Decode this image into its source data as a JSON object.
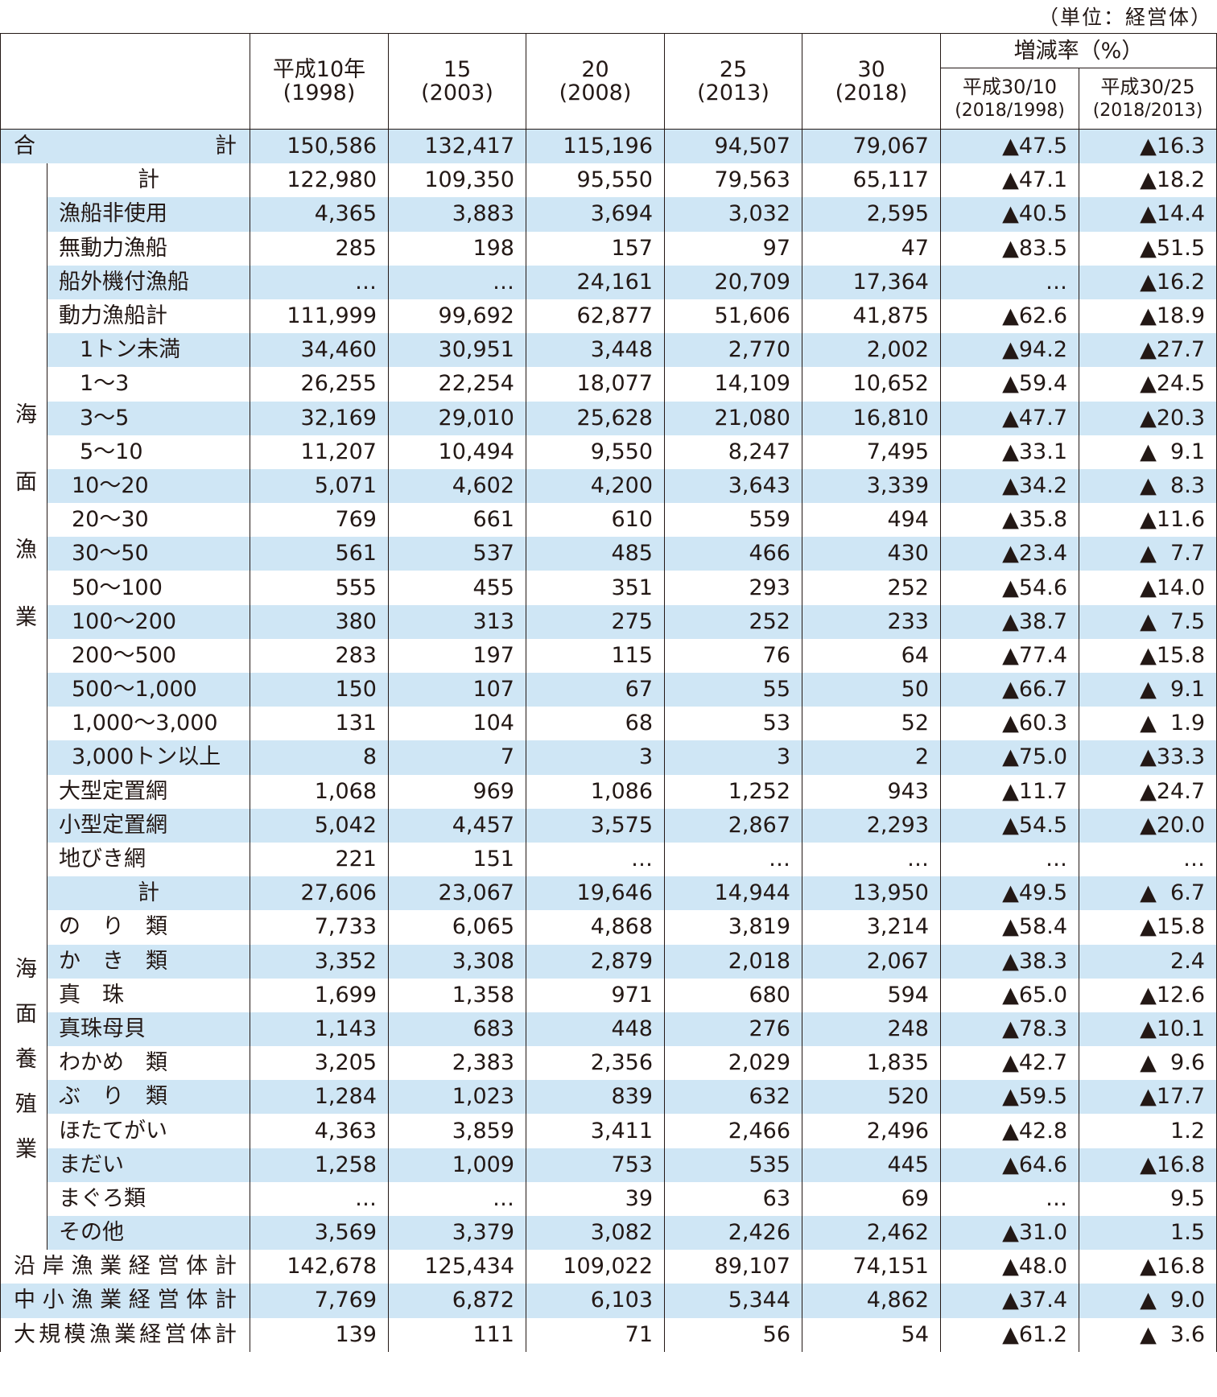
{
  "unit_note": "（単位：経営体）",
  "header": {
    "years": [
      {
        "label": "平成10年",
        "sub": "(1998)"
      },
      {
        "label": "15",
        "sub": "(2003)"
      },
      {
        "label": "20",
        "sub": "(2008)"
      },
      {
        "label": "25",
        "sub": "(2013)"
      },
      {
        "label": "30",
        "sub": "(2018)"
      }
    ],
    "rate_title": "増減率（%）",
    "rates": [
      {
        "label": "平成30/10",
        "sub": "(2018/1998)"
      },
      {
        "label": "平成30/25",
        "sub": "(2018/2013)"
      }
    ]
  },
  "groups": {
    "marine_fishing": "海面漁業",
    "marine_aquaculture": "海面養殖業"
  },
  "rows": [
    {
      "label": "合計",
      "style": "justify",
      "values": [
        "150,586",
        "132,417",
        "115,196",
        "94,507",
        "79,067",
        "▲47.5",
        "▲16.3"
      ]
    },
    {
      "label": "計",
      "group": "marine_fishing",
      "indent": 0,
      "values": [
        "122,980",
        "109,350",
        "95,550",
        "79,563",
        "65,117",
        "▲47.1",
        "▲18.2"
      ]
    },
    {
      "label": "漁船非使用",
      "group": "marine_fishing",
      "indent": 1,
      "values": [
        "4,365",
        "3,883",
        "3,694",
        "3,032",
        "2,595",
        "▲40.5",
        "▲14.4"
      ]
    },
    {
      "label": "無動力漁船",
      "group": "marine_fishing",
      "indent": 1,
      "values": [
        "285",
        "198",
        "157",
        "97",
        "47",
        "▲83.5",
        "▲51.5"
      ]
    },
    {
      "label": "船外機付漁船",
      "group": "marine_fishing",
      "indent": 1,
      "values": [
        "…",
        "…",
        "24,161",
        "20,709",
        "17,364",
        "…",
        "▲16.2"
      ]
    },
    {
      "label": "動力漁船計",
      "group": "marine_fishing",
      "indent": 1,
      "values": [
        "111,999",
        "99,692",
        "62,877",
        "51,606",
        "41,875",
        "▲62.6",
        "▲18.9"
      ]
    },
    {
      "label": "1トン未満",
      "group": "marine_fishing",
      "indent": 2,
      "values": [
        "34,460",
        "30,951",
        "3,448",
        "2,770",
        "2,002",
        "▲94.2",
        "▲27.7"
      ]
    },
    {
      "label": "1～3",
      "group": "marine_fishing",
      "indent": 2,
      "values": [
        "26,255",
        "22,254",
        "18,077",
        "14,109",
        "10,652",
        "▲59.4",
        "▲24.5"
      ]
    },
    {
      "label": "3～5",
      "group": "marine_fishing",
      "indent": 2,
      "values": [
        "32,169",
        "29,010",
        "25,628",
        "21,080",
        "16,810",
        "▲47.7",
        "▲20.3"
      ]
    },
    {
      "label": "5～10",
      "group": "marine_fishing",
      "indent": 2,
      "values": [
        "11,207",
        "10,494",
        "9,550",
        "8,247",
        "7,495",
        "▲33.1",
        "▲  9.1"
      ]
    },
    {
      "label": "10～20",
      "group": "marine_fishing",
      "indent": 3,
      "values": [
        "5,071",
        "4,602",
        "4,200",
        "3,643",
        "3,339",
        "▲34.2",
        "▲  8.3"
      ]
    },
    {
      "label": "20～30",
      "group": "marine_fishing",
      "indent": 3,
      "values": [
        "769",
        "661",
        "610",
        "559",
        "494",
        "▲35.8",
        "▲11.6"
      ]
    },
    {
      "label": "30～50",
      "group": "marine_fishing",
      "indent": 3,
      "values": [
        "561",
        "537",
        "485",
        "466",
        "430",
        "▲23.4",
        "▲  7.7"
      ]
    },
    {
      "label": "50～100",
      "group": "marine_fishing",
      "indent": 3,
      "values": [
        "555",
        "455",
        "351",
        "293",
        "252",
        "▲54.6",
        "▲14.0"
      ]
    },
    {
      "label": "100～200",
      "group": "marine_fishing",
      "indent": 3,
      "values": [
        "380",
        "313",
        "275",
        "252",
        "233",
        "▲38.7",
        "▲  7.5"
      ]
    },
    {
      "label": "200～500",
      "group": "marine_fishing",
      "indent": 3,
      "values": [
        "283",
        "197",
        "115",
        "76",
        "64",
        "▲77.4",
        "▲15.8"
      ]
    },
    {
      "label": "500～1,000",
      "group": "marine_fishing",
      "indent": 3,
      "values": [
        "150",
        "107",
        "67",
        "55",
        "50",
        "▲66.7",
        "▲  9.1"
      ]
    },
    {
      "label": "1,000～3,000",
      "group": "marine_fishing",
      "indent": 3,
      "values": [
        "131",
        "104",
        "68",
        "53",
        "52",
        "▲60.3",
        "▲  1.9"
      ]
    },
    {
      "label": "3,000トン以上",
      "group": "marine_fishing",
      "indent": 3,
      "values": [
        "8",
        "7",
        "3",
        "3",
        "2",
        "▲75.0",
        "▲33.3"
      ]
    },
    {
      "label": "大型定置網",
      "group": "marine_fishing",
      "indent": 1,
      "values": [
        "1,068",
        "969",
        "1,086",
        "1,252",
        "943",
        "▲11.7",
        "▲24.7"
      ]
    },
    {
      "label": "小型定置網",
      "group": "marine_fishing",
      "indent": 1,
      "values": [
        "5,042",
        "4,457",
        "3,575",
        "2,867",
        "2,293",
        "▲54.5",
        "▲20.0"
      ]
    },
    {
      "label": "地びき網",
      "group": "marine_fishing",
      "indent": 1,
      "values": [
        "221",
        "151",
        "…",
        "…",
        "…",
        "…",
        "…"
      ]
    },
    {
      "label": "計",
      "group": "marine_aquaculture",
      "indent": 0,
      "values": [
        "27,606",
        "23,067",
        "19,646",
        "14,944",
        "13,950",
        "▲49.5",
        "▲  6.7"
      ]
    },
    {
      "label": "の　り　類",
      "group": "marine_aquaculture",
      "indent": 1,
      "values": [
        "7,733",
        "6,065",
        "4,868",
        "3,819",
        "3,214",
        "▲58.4",
        "▲15.8"
      ]
    },
    {
      "label": "か　き　類",
      "group": "marine_aquaculture",
      "indent": 1,
      "values": [
        "3,352",
        "3,308",
        "2,879",
        "2,018",
        "2,067",
        "▲38.3",
        "2.4"
      ]
    },
    {
      "label": "真　珠",
      "group": "marine_aquaculture",
      "indent": 1,
      "values": [
        "1,699",
        "1,358",
        "971",
        "680",
        "594",
        "▲65.0",
        "▲12.6"
      ]
    },
    {
      "label": "真珠母貝",
      "group": "marine_aquaculture",
      "indent": 1,
      "values": [
        "1,143",
        "683",
        "448",
        "276",
        "248",
        "▲78.3",
        "▲10.1"
      ]
    },
    {
      "label": "わかめ　類",
      "group": "marine_aquaculture",
      "indent": 1,
      "values": [
        "3,205",
        "2,383",
        "2,356",
        "2,029",
        "1,835",
        "▲42.7",
        "▲  9.6"
      ]
    },
    {
      "label": "ぶ　り　類",
      "group": "marine_aquaculture",
      "indent": 1,
      "values": [
        "1,284",
        "1,023",
        "839",
        "632",
        "520",
        "▲59.5",
        "▲17.7"
      ]
    },
    {
      "label": "ほたてがい",
      "group": "marine_aquaculture",
      "indent": 1,
      "values": [
        "4,363",
        "3,859",
        "3,411",
        "2,466",
        "2,496",
        "▲42.8",
        "1.2"
      ]
    },
    {
      "label": "まだい",
      "group": "marine_aquaculture",
      "indent": 1,
      "values": [
        "1,258",
        "1,009",
        "753",
        "535",
        "445",
        "▲64.6",
        "▲16.8"
      ]
    },
    {
      "label": "まぐろ類",
      "group": "marine_aquaculture",
      "indent": 1,
      "values": [
        "…",
        "…",
        "39",
        "63",
        "69",
        "…",
        "9.5"
      ]
    },
    {
      "label": "その他",
      "group": "marine_aquaculture",
      "indent": 1,
      "values": [
        "3,569",
        "3,379",
        "3,082",
        "2,426",
        "2,462",
        "▲31.0",
        "1.5"
      ]
    },
    {
      "label": "沿岸漁業経営体計",
      "style": "justify",
      "values": [
        "142,678",
        "125,434",
        "109,022",
        "89,107",
        "74,151",
        "▲48.0",
        "▲16.8"
      ]
    },
    {
      "label": "中小漁業経営体計",
      "style": "justify",
      "values": [
        "7,769",
        "6,872",
        "6,103",
        "5,344",
        "4,862",
        "▲37.4",
        "▲  9.0"
      ]
    },
    {
      "label": "大規模漁業経営体計",
      "style": "justify",
      "values": [
        "139",
        "111",
        "71",
        "56",
        "54",
        "▲61.2",
        "▲  3.6"
      ]
    }
  ],
  "colors": {
    "shade": "#cfe6f5",
    "line": "#231815"
  }
}
